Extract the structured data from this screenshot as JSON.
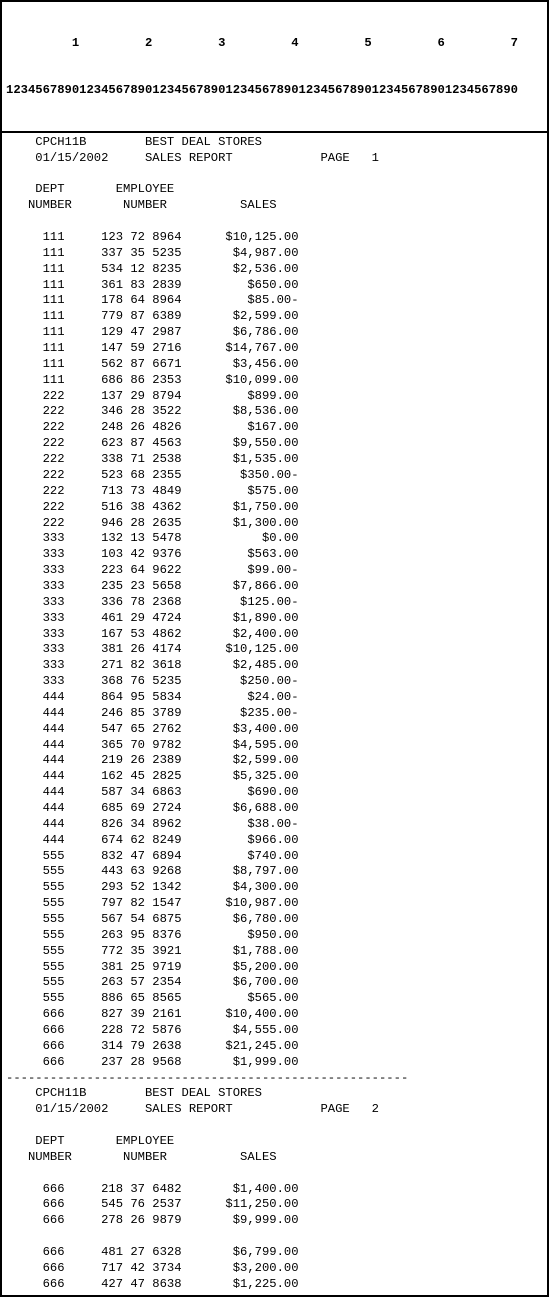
{
  "ruler": {
    "tens_line": "         1         2         3         4         5         6         7",
    "units_line": "1234567890123456789012345678901234567890123456789012345678901234567890"
  },
  "report": {
    "program_id": "CPCH11B",
    "title": "BEST DEAL STORES",
    "subtitle": "SALES REPORT",
    "date": "01/15/2002",
    "page_label": "PAGE",
    "dept_header_1": "DEPT",
    "dept_header_2": "NUMBER",
    "emp_header_1": "EMPLOYEE",
    "emp_header_2": "NUMBER",
    "sales_header": "SALES",
    "page_break_char": "-",
    "pages": [
      {
        "page_number": 1,
        "rows": [
          {
            "dept": "111",
            "emp": "123 72 8964",
            "sales": "$10,125.00"
          },
          {
            "dept": "111",
            "emp": "337 35 5235",
            "sales": "$4,987.00"
          },
          {
            "dept": "111",
            "emp": "534 12 8235",
            "sales": "$2,536.00"
          },
          {
            "dept": "111",
            "emp": "361 83 2839",
            "sales": "$650.00"
          },
          {
            "dept": "111",
            "emp": "178 64 8964",
            "sales": "$85.00-"
          },
          {
            "dept": "111",
            "emp": "779 87 6389",
            "sales": "$2,599.00"
          },
          {
            "dept": "111",
            "emp": "129 47 2987",
            "sales": "$6,786.00"
          },
          {
            "dept": "111",
            "emp": "147 59 2716",
            "sales": "$14,767.00"
          },
          {
            "dept": "111",
            "emp": "562 87 6671",
            "sales": "$3,456.00"
          },
          {
            "dept": "111",
            "emp": "686 86 2353",
            "sales": "$10,099.00"
          },
          {
            "dept": "222",
            "emp": "137 29 8794",
            "sales": "$899.00"
          },
          {
            "dept": "222",
            "emp": "346 28 3522",
            "sales": "$8,536.00"
          },
          {
            "dept": "222",
            "emp": "248 26 4826",
            "sales": "$167.00"
          },
          {
            "dept": "222",
            "emp": "623 87 4563",
            "sales": "$9,550.00"
          },
          {
            "dept": "222",
            "emp": "338 71 2538",
            "sales": "$1,535.00"
          },
          {
            "dept": "222",
            "emp": "523 68 2355",
            "sales": "$350.00-"
          },
          {
            "dept": "222",
            "emp": "713 73 4849",
            "sales": "$575.00"
          },
          {
            "dept": "222",
            "emp": "516 38 4362",
            "sales": "$1,750.00"
          },
          {
            "dept": "222",
            "emp": "946 28 2635",
            "sales": "$1,300.00"
          },
          {
            "dept": "333",
            "emp": "132 13 5478",
            "sales": "$0.00"
          },
          {
            "dept": "333",
            "emp": "103 42 9376",
            "sales": "$563.00"
          },
          {
            "dept": "333",
            "emp": "223 64 9622",
            "sales": "$99.00-"
          },
          {
            "dept": "333",
            "emp": "235 23 5658",
            "sales": "$7,866.00"
          },
          {
            "dept": "333",
            "emp": "336 78 2368",
            "sales": "$125.00-"
          },
          {
            "dept": "333",
            "emp": "461 29 4724",
            "sales": "$1,890.00"
          },
          {
            "dept": "333",
            "emp": "167 53 4862",
            "sales": "$2,400.00"
          },
          {
            "dept": "333",
            "emp": "381 26 4174",
            "sales": "$10,125.00"
          },
          {
            "dept": "333",
            "emp": "271 82 3618",
            "sales": "$2,485.00"
          },
          {
            "dept": "333",
            "emp": "368 76 5235",
            "sales": "$250.00-"
          },
          {
            "dept": "444",
            "emp": "864 95 5834",
            "sales": "$24.00-"
          },
          {
            "dept": "444",
            "emp": "246 85 3789",
            "sales": "$235.00-"
          },
          {
            "dept": "444",
            "emp": "547 65 2762",
            "sales": "$3,400.00"
          },
          {
            "dept": "444",
            "emp": "365 70 9782",
            "sales": "$4,595.00"
          },
          {
            "dept": "444",
            "emp": "219 26 2389",
            "sales": "$2,599.00"
          },
          {
            "dept": "444",
            "emp": "162 45 2825",
            "sales": "$5,325.00"
          },
          {
            "dept": "444",
            "emp": "587 34 6863",
            "sales": "$690.00"
          },
          {
            "dept": "444",
            "emp": "685 69 2724",
            "sales": "$6,688.00"
          },
          {
            "dept": "444",
            "emp": "826 34 8962",
            "sales": "$38.00-"
          },
          {
            "dept": "444",
            "emp": "674 62 8249",
            "sales": "$966.00"
          },
          {
            "dept": "555",
            "emp": "832 47 6894",
            "sales": "$740.00"
          },
          {
            "dept": "555",
            "emp": "443 63 9268",
            "sales": "$8,797.00"
          },
          {
            "dept": "555",
            "emp": "293 52 1342",
            "sales": "$4,300.00"
          },
          {
            "dept": "555",
            "emp": "797 82 1547",
            "sales": "$10,987.00"
          },
          {
            "dept": "555",
            "emp": "567 54 6875",
            "sales": "$6,780.00"
          },
          {
            "dept": "555",
            "emp": "263 95 8376",
            "sales": "$950.00"
          },
          {
            "dept": "555",
            "emp": "772 35 3921",
            "sales": "$1,788.00"
          },
          {
            "dept": "555",
            "emp": "381 25 9719",
            "sales": "$5,200.00"
          },
          {
            "dept": "555",
            "emp": "263 57 2354",
            "sales": "$6,700.00"
          },
          {
            "dept": "555",
            "emp": "886 65 8565",
            "sales": "$565.00"
          },
          {
            "dept": "666",
            "emp": "827 39 2161",
            "sales": "$10,400.00"
          },
          {
            "dept": "666",
            "emp": "228 72 5876",
            "sales": "$4,555.00"
          },
          {
            "dept": "666",
            "emp": "314 79 2638",
            "sales": "$21,245.00"
          },
          {
            "dept": "666",
            "emp": "237 28 9568",
            "sales": "$1,999.00"
          }
        ]
      },
      {
        "page_number": 2,
        "rows_group_a": [
          {
            "dept": "666",
            "emp": "218 37 6482",
            "sales": "$1,400.00"
          },
          {
            "dept": "666",
            "emp": "545 76 2537",
            "sales": "$11,250.00"
          },
          {
            "dept": "666",
            "emp": "278 26 9879",
            "sales": "$9,999.00"
          }
        ],
        "rows_group_b": [
          {
            "dept": "666",
            "emp": "481 27 6328",
            "sales": "$6,799.00"
          },
          {
            "dept": "666",
            "emp": "717 42 3734",
            "sales": "$3,200.00"
          },
          {
            "dept": "666",
            "emp": "427 47 8638",
            "sales": "$1,225.00"
          }
        ]
      }
    ],
    "columns": {
      "dept_start": 6,
      "dept_width": 3,
      "emp_start": 14,
      "emp_width": 11,
      "sales_end_col": 40
    },
    "header_layout": {
      "program_col": 5,
      "date_col": 5,
      "title_col": 20,
      "subtitle_col": 20,
      "page_label_col": 44,
      "page_number_col": 51,
      "dept_h1_col": 5,
      "dept_h2_col": 4,
      "emp_h1_col": 16,
      "emp_h2_col": 17,
      "sales_h_col": 33
    }
  }
}
